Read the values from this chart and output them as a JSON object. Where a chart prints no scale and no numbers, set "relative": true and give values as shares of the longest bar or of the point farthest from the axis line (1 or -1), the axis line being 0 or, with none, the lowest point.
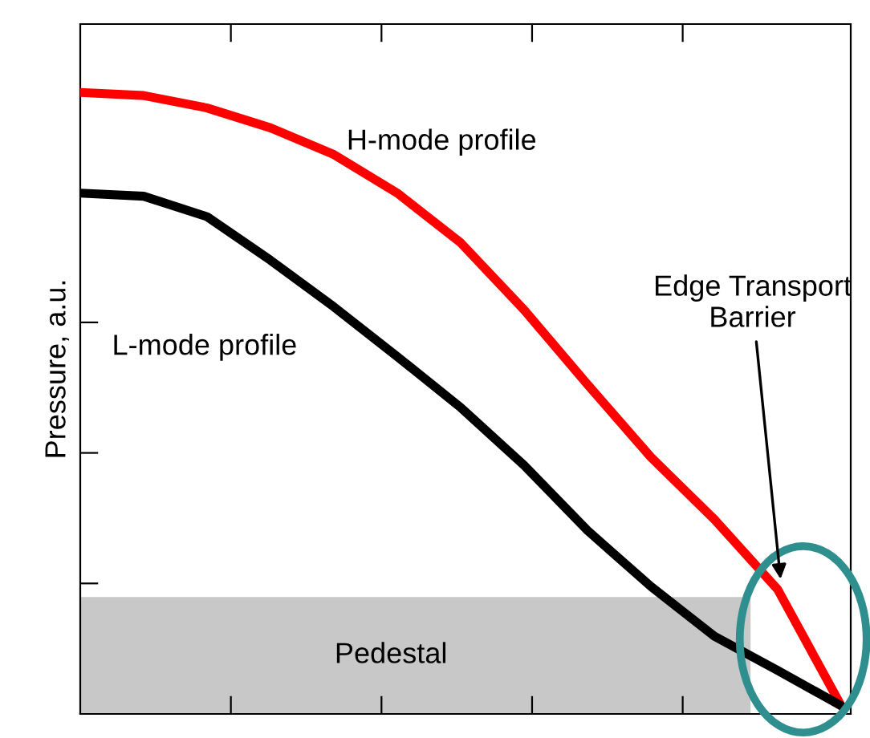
{
  "chart_data": {
    "type": "line",
    "relative": true,
    "ylabel": "Pressure, a.u.",
    "categories": [
      null,
      null,
      null,
      null,
      null,
      null,
      null,
      null,
      null,
      null,
      null,
      null,
      null
    ],
    "series": [
      {
        "color": "#ff0000",
        "values": [
          1.0,
          0.995,
          0.975,
          0.943,
          0.9,
          0.838,
          0.758,
          0.65,
          0.53,
          0.413,
          0.313,
          0.2,
          0.013
        ]
      },
      {
        "color": "#000000",
        "values": [
          0.838,
          0.833,
          0.8,
          0.73,
          0.655,
          0.575,
          0.493,
          0.4,
          0.295,
          0.205,
          0.125,
          0.07,
          0.013
        ]
      }
    ],
    "bands": [
      {
        "axis": "y",
        "from": 0,
        "to": 0.188,
        "label": "Pedestal",
        "color": "#c8c8c8"
      }
    ],
    "annotations": [
      "H-mode profile",
      "L-mode profile",
      "Edge Transport\nBarrier"
    ],
    "grid": false,
    "legend": false
  }
}
